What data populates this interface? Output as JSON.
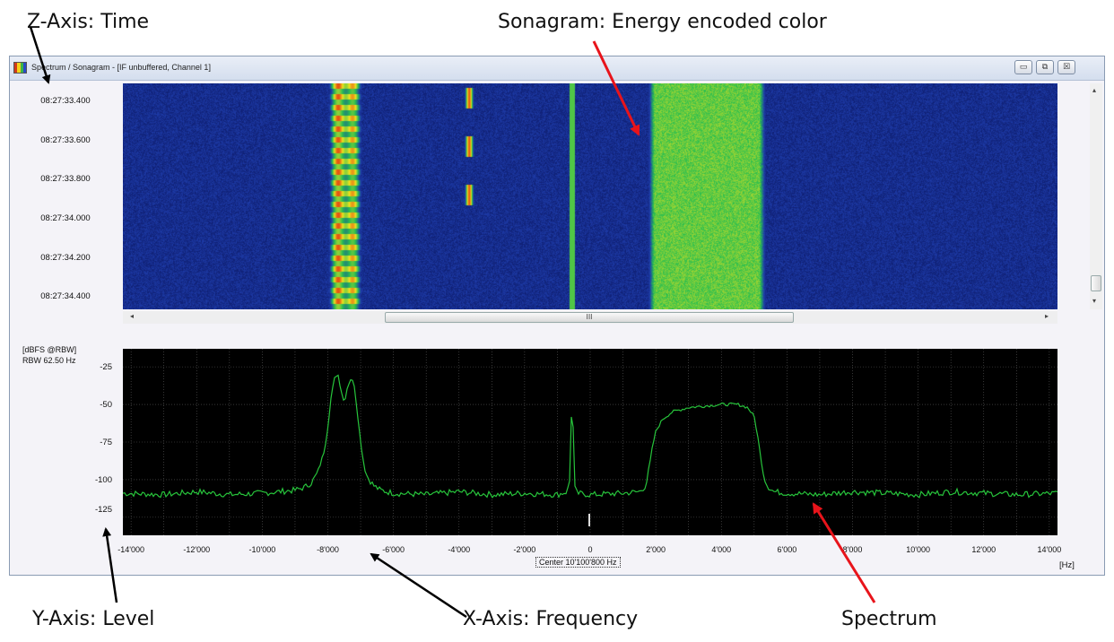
{
  "annotations": {
    "z_axis": "Z-Axis: Time",
    "sonagram": "Sonagram: Energy encoded color",
    "y_axis": "Y-Axis: Level",
    "x_axis": "X-Axis: Frequency",
    "spectrum": "Spectrum",
    "colors": {
      "black_arrow": "#000000",
      "red_arrow": "#e8141b"
    }
  },
  "window": {
    "title": "Spectrum / Sonagram - [IF unbuffered, Channel 1]",
    "buttons": {
      "minimize": "▭",
      "restore": "⧉",
      "close": "☒"
    }
  },
  "sonagram": {
    "time_labels": [
      "08:27:33.400",
      "08:27:33.600",
      "08:27:33.800",
      "08:27:34.000",
      "08:27:34.200",
      "08:27:34.400"
    ],
    "scroll": {
      "left_arrow": "◂",
      "right_arrow": "▸",
      "up_arrow": "▴",
      "down_arrow": "▾",
      "thumb_grip": "III"
    },
    "colors": {
      "background": "#1a2a7a",
      "low": "#0a1a6a",
      "mid": "#28c24a",
      "high": "#f2e41a",
      "peak": "#e23a10",
      "narrow_line": "#5cd23c"
    }
  },
  "spectrum": {
    "unit_label": "[dBFS @RBW]",
    "rbw_label": "RBW 62.50 Hz",
    "center_label": "Center 10'100'800 Hz",
    "x_unit": "[Hz]",
    "line_color": "#27c43b",
    "grid_color": "#5a5a5a"
  },
  "chart_data": {
    "type": "line",
    "ylabel": "[dBFS @RBW]",
    "xlabel": "[Hz]",
    "xlim": [
      -14250,
      14250
    ],
    "ylim": [
      -137,
      -13
    ],
    "y_ticks": [
      -25,
      -50,
      -75,
      -100,
      -125
    ],
    "y_tick_labels": [
      "-25",
      "-50",
      "-75",
      "-100",
      "-125"
    ],
    "x_ticks": [
      -14000,
      -12000,
      -10000,
      -8000,
      -6000,
      -4000,
      -2000,
      0,
      2000,
      4000,
      6000,
      8000,
      10000,
      12000,
      14000
    ],
    "x_tick_labels": [
      "-14'000",
      "-12'000",
      "-10'000",
      "-8'000",
      "-6'000",
      "-4'000",
      "-2'000",
      "0",
      "2'000",
      "4'000",
      "6'000",
      "8'000",
      "10'000",
      "12'000",
      "14'000"
    ],
    "grid": true,
    "series": [
      {
        "x": [
          -14250,
          -13000,
          -12000,
          -11000,
          -10000,
          -9500,
          -9000,
          -8700,
          -8500,
          -8300,
          -8100,
          -8000,
          -7900,
          -7800,
          -7700,
          -7600,
          -7500,
          -7400,
          -7300,
          -7200,
          -7100,
          -7000,
          -6900,
          -6800,
          -6600,
          -6400,
          -6000,
          -5000,
          -4000,
          -3000,
          -2000,
          -1000,
          -700,
          -620,
          -580,
          -550,
          -520,
          -480,
          -400,
          0,
          1000,
          1500,
          1700,
          1800,
          1900,
          2000,
          2200,
          2500,
          3000,
          3500,
          4000,
          4500,
          4800,
          5000,
          5100,
          5200,
          5300,
          5400,
          5600,
          6000,
          7000,
          8000,
          9000,
          10000,
          11000,
          12000,
          13000,
          14250
        ],
        "y": [
          -109,
          -110,
          -108,
          -110,
          -109,
          -108,
          -107,
          -105,
          -102,
          -95,
          -80,
          -65,
          -45,
          -33,
          -29,
          -40,
          -49,
          -38,
          -33,
          -36,
          -55,
          -75,
          -90,
          -98,
          -104,
          -107,
          -109,
          -110,
          -108,
          -110,
          -109,
          -110,
          -108,
          -100,
          -60,
          -48,
          -65,
          -105,
          -109,
          -110,
          -109,
          -108,
          -104,
          -92,
          -78,
          -68,
          -60,
          -55,
          -52,
          -51,
          -50,
          -50,
          -52,
          -58,
          -70,
          -85,
          -98,
          -104,
          -108,
          -109,
          -110,
          -108,
          -109,
          -110,
          -108,
          -109,
          -110,
          -109
        ]
      }
    ]
  }
}
